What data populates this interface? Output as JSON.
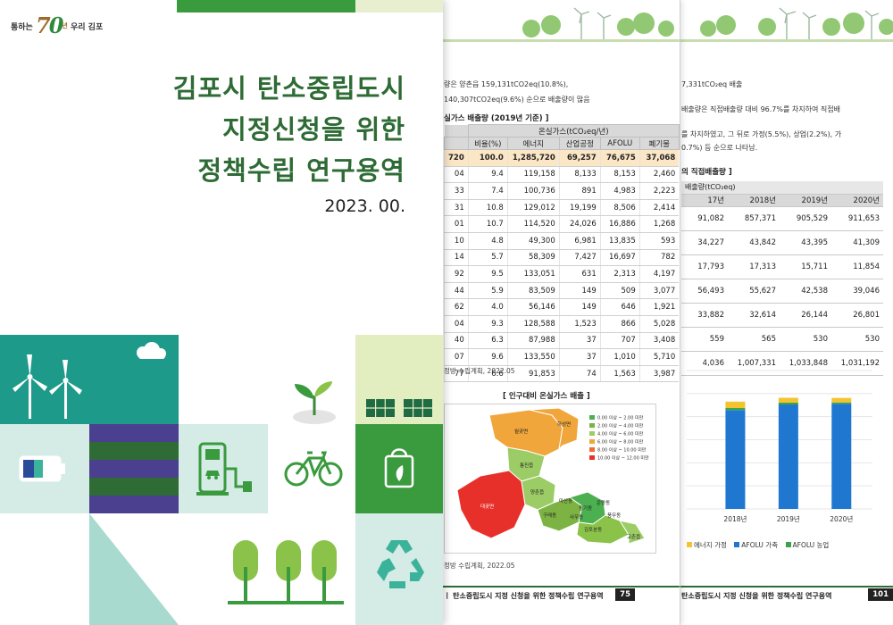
{
  "cover": {
    "logo_prefix": "통하는",
    "logo_seven": "7",
    "logo_zero": "0",
    "logo_year": "년",
    "logo_suffix": "우리 김포",
    "title_lines": [
      "김포시 탄소중립도시",
      "지정신청을 위한",
      "정책수립 연구용역"
    ],
    "date": "2023. 00."
  },
  "page_mid": {
    "intro_lines": [
      "량은 양촌읍 159,131tCO2eq(10.8%),",
      "140,307tCO2eq(9.6%) 순으로 배출량이 많음"
    ],
    "table_caption": "실가스 배출량 (2019년 기준) ]",
    "group_header": "온실가스(tCO₂eq/년)",
    "columns": [
      "",
      "비율(%)",
      "에너지",
      "산업공정",
      "AFOLU",
      "폐기물"
    ],
    "rows": [
      [
        "720",
        "100.0",
        "1,285,720",
        "69,257",
        "76,675",
        "37,068"
      ],
      [
        "04",
        "9.4",
        "119,158",
        "8,133",
        "8,153",
        "2,460"
      ],
      [
        "33",
        "7.4",
        "100,736",
        "891",
        "4,983",
        "2,223"
      ],
      [
        "31",
        "10.8",
        "129,012",
        "19,199",
        "8,506",
        "2,414"
      ],
      [
        "01",
        "10.7",
        "114,520",
        "24,026",
        "16,886",
        "1,268"
      ],
      [
        "10",
        "4.8",
        "49,300",
        "6,981",
        "13,835",
        "593"
      ],
      [
        "14",
        "5.7",
        "58,309",
        "7,427",
        "16,697",
        "782"
      ],
      [
        "92",
        "9.5",
        "133,051",
        "631",
        "2,313",
        "4,197"
      ],
      [
        "44",
        "5.9",
        "83,509",
        "149",
        "509",
        "3,077"
      ],
      [
        "62",
        "4.0",
        "56,146",
        "149",
        "646",
        "1,921"
      ],
      [
        "04",
        "9.3",
        "128,588",
        "1,523",
        "866",
        "5,028"
      ],
      [
        "40",
        "6.3",
        "87,988",
        "37",
        "707",
        "3,408"
      ],
      [
        "07",
        "9.6",
        "133,550",
        "37",
        "1,010",
        "5,710"
      ],
      [
        "77",
        "6.6",
        "91,853",
        "74",
        "1,563",
        "3,987"
      ]
    ],
    "source1": "정방 수립계획, 2022.05",
    "map_title": "[ 인구대비 온실가스 배출 ]",
    "map_legend": [
      "0.00 이상 ~ 2.00 미만",
      "2.00 이상 ~ 4.00 미만",
      "4.00 이상 ~ 6.00 미만",
      "6.00 이상 ~ 8.00 미만",
      "8.00 이상 ~ 10.00 미만",
      "10.00 이상 ~ 12.00 미만"
    ],
    "map_labels": [
      "월곶면",
      "하성면",
      "통진읍",
      "대곶면",
      "양촌읍",
      "구래동",
      "마산동",
      "장기동",
      "운양동",
      "김포본동",
      "사우동",
      "풍무동",
      "고촌읍"
    ],
    "source2": "정방 수립계획, 2022.05",
    "footer": "ㅣ 탄소중립도시 지정 신청을 위한 정책수립 연구용역",
    "page_no": "75",
    "colors": {
      "green_dark": "#2e6b35",
      "map_red": "#e8302a",
      "map_orange": "#f0a63a",
      "map_lgreen": "#9ccc65",
      "map_green": "#4caf50"
    }
  },
  "page_back": {
    "lines": [
      "7,331tCO₂eq 배출",
      "배출량은 직접배출량 대비 96.7%를 차지하여 직접배",
      "를 차지하였고, 그 뒤로 가정(5.5%), 상업(2.2%), 가",
      "0.7%) 등 순으로 나타남."
    ],
    "caption": "의 직접배출량 ]",
    "unit_label": "배출량(tCO₂eq)",
    "year_headers": [
      "17년",
      "2018년",
      "2019년",
      "2020년"
    ],
    "rows": [
      [
        "91,082",
        "857,371",
        "905,529",
        "911,653"
      ],
      [
        "34,227",
        "43,842",
        "43,395",
        "41,309"
      ],
      [
        "17,793",
        "17,313",
        "15,711",
        "11,854"
      ],
      [
        "56,493",
        "55,627",
        "42,538",
        "39,046"
      ],
      [
        "33,882",
        "32,614",
        "26,144",
        "26,801"
      ],
      [
        "559",
        "565",
        "530",
        "530"
      ],
      [
        "4,036",
        "1,007,331",
        "1,033,848",
        "1,031,192"
      ]
    ],
    "legend": [
      "에너지 가정",
      "AFOLU 가축",
      "AFOLU 농업"
    ],
    "legend_colors": [
      "#f4c430",
      "#1f77d0",
      "#3aa34a"
    ],
    "footer": "탄소중립도시 지정 신청을 위한 정책수립 연구용역",
    "page_no": "101"
  },
  "chart_data": {
    "type": "bar",
    "categories": [
      "2018년",
      "2019년",
      "2020년"
    ],
    "series": [
      {
        "name": "AFOLU 가축",
        "values": [
          857371,
          905529,
          911653
        ]
      },
      {
        "name": "AFOLU 농업",
        "values": [
          17313,
          15711,
          11854
        ]
      },
      {
        "name": "에너지 가정",
        "values": [
          55627,
          42538,
          39046
        ]
      }
    ],
    "ylim": [
      0,
      1200000
    ],
    "stacked": true,
    "grid": true
  }
}
